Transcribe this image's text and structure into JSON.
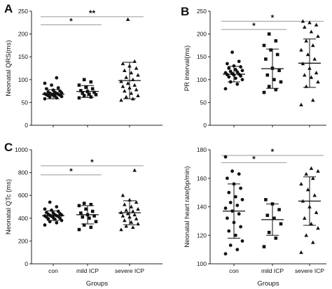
{
  "chart_data": [
    {
      "type": "scatter",
      "panel_label": "A",
      "xlabel": "",
      "ylabel": "Neonatal QRS(ms)",
      "ylim": [
        0,
        250
      ],
      "yticks": [
        "0",
        "50",
        "100",
        "150",
        "200",
        "250"
      ],
      "categories": [
        "con",
        "mild ICP",
        "severe ICP"
      ],
      "marker_shapes": [
        "circle",
        "square",
        "triangle"
      ],
      "series": [
        {
          "values": [
            58,
            60,
            62,
            63,
            64,
            65,
            66,
            66,
            67,
            68,
            68,
            69,
            70,
            70,
            71,
            72,
            73,
            75,
            77,
            80,
            82,
            88,
            92,
            104
          ],
          "mean": 68,
          "sd": 10
        },
        {
          "values": [
            60,
            62,
            65,
            67,
            68,
            70,
            72,
            74,
            76,
            80,
            83,
            88,
            95,
            100
          ],
          "mean": 74,
          "sd": 13
        },
        {
          "values": [
            55,
            58,
            62,
            65,
            70,
            75,
            78,
            82,
            85,
            88,
            92,
            96,
            100,
            105,
            110,
            115,
            120,
            125,
            130,
            135,
            140,
            232
          ],
          "mean": 98,
          "sd": 40
        }
      ],
      "significance": [
        {
          "from": 0,
          "to": 1,
          "label": "*",
          "y": 220
        },
        {
          "from": 0,
          "to": 2,
          "label": "**",
          "y": 238
        }
      ]
    },
    {
      "type": "scatter",
      "panel_label": "B",
      "xlabel": "",
      "ylabel": "PR interval(ms)",
      "ylim": [
        0,
        250
      ],
      "yticks": [
        "0",
        "50",
        "100",
        "150",
        "200",
        "250"
      ],
      "categories": [
        "con",
        "mild ICP",
        "severe ICP"
      ],
      "marker_shapes": [
        "circle",
        "square",
        "triangle"
      ],
      "series": [
        {
          "values": [
            80,
            90,
            95,
            100,
            103,
            106,
            108,
            110,
            111,
            112,
            113,
            115,
            117,
            118,
            120,
            122,
            125,
            128,
            130,
            135,
            140,
            160
          ],
          "mean": 112,
          "sd": 17
        },
        {
          "values": [
            72,
            78,
            85,
            95,
            100,
            110,
            120,
            125,
            145,
            155,
            165,
            175,
            185,
            200
          ],
          "mean": 124,
          "sd": 43
        },
        {
          "values": [
            45,
            55,
            85,
            95,
            105,
            110,
            115,
            125,
            135,
            145,
            155,
            165,
            175,
            185,
            195,
            205,
            215,
            220,
            225,
            228
          ],
          "mean": 136,
          "sd": 53
        }
      ],
      "significance": [
        {
          "from": 0,
          "to": 1,
          "label": "*",
          "y": 210
        },
        {
          "from": 0,
          "to": 2,
          "label": "*",
          "y": 228
        }
      ]
    },
    {
      "type": "scatter",
      "panel_label": "C",
      "xlabel": "Groups",
      "ylabel": "Neonatal QTc (ms)",
      "ylim": [
        0,
        1000
      ],
      "yticks": [
        "0",
        "200",
        "400",
        "600",
        "800",
        "1000"
      ],
      "categories": [
        "con",
        "mild ICP",
        "severe ICP"
      ],
      "marker_shapes": [
        "circle",
        "square",
        "triangle"
      ],
      "series": [
        {
          "values": [
            340,
            360,
            370,
            380,
            390,
            395,
            400,
            405,
            410,
            415,
            418,
            420,
            422,
            425,
            428,
            430,
            435,
            440,
            445,
            450,
            460,
            470,
            480,
            500,
            540
          ],
          "mean": 422,
          "sd": 42
        },
        {
          "values": [
            300,
            320,
            340,
            370,
            400,
            410,
            420,
            430,
            445,
            460,
            480,
            510,
            520,
            530
          ],
          "mean": 430,
          "sd": 80
        },
        {
          "values": [
            300,
            320,
            330,
            350,
            365,
            380,
            395,
            410,
            420,
            430,
            440,
            450,
            460,
            470,
            480,
            500,
            520,
            540,
            560,
            600,
            820
          ],
          "mean": 448,
          "sd": 105
        }
      ],
      "significance": [
        {
          "from": 0,
          "to": 1,
          "label": "*",
          "y": 780
        },
        {
          "from": 0,
          "to": 2,
          "label": "*",
          "y": 860
        }
      ]
    },
    {
      "type": "scatter",
      "panel_label": "",
      "xlabel": "Groups",
      "ylabel": "Neonatal heart rate(bp/min)",
      "ylim": [
        100,
        180
      ],
      "yticks": [
        "100",
        "120",
        "140",
        "160",
        "180"
      ],
      "categories": [
        "con",
        "mild ICP",
        "severe ICP"
      ],
      "marker_shapes": [
        "circle",
        "square",
        "triangle"
      ],
      "series": [
        {
          "values": [
            107,
            110,
            113,
            116,
            120,
            123,
            126,
            129,
            132,
            135,
            137,
            139,
            141,
            143,
            145,
            147,
            150,
            153,
            156,
            160,
            163,
            165,
            175
          ],
          "mean": 137,
          "sd": 19
        },
        {
          "values": [
            112,
            118,
            122,
            128,
            132,
            134,
            138,
            142,
            145
          ],
          "mean": 131,
          "sd": 11
        },
        {
          "values": [
            108,
            115,
            120,
            125,
            128,
            132,
            136,
            140,
            144,
            148,
            152,
            156,
            160,
            163,
            165,
            167
          ],
          "mean": 144,
          "sd": 17
        }
      ],
      "significance": [
        {
          "from": 0,
          "to": 1,
          "label": "*",
          "y": 171
        },
        {
          "from": 0,
          "to": 2,
          "label": "*",
          "y": 176
        }
      ]
    }
  ]
}
